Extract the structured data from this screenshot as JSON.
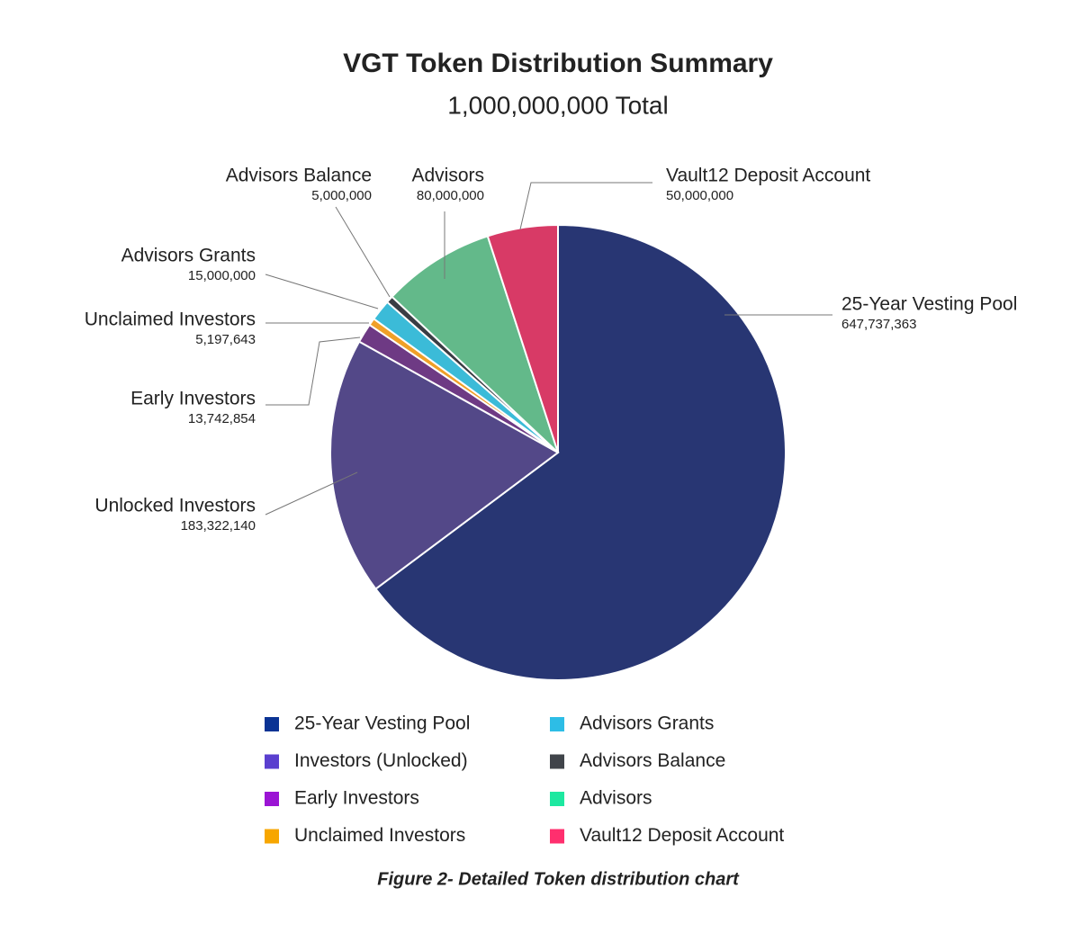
{
  "chart_data": {
    "type": "pie",
    "title": "VGT Token Distribution Summary",
    "subtitle": "1,000,000,000 Total",
    "caption": "Figure 2- Detailed Token distribution chart",
    "labels": [
      "25-Year Vesting Pool",
      "Unlocked Investors",
      "Early Investors",
      "Unclaimed Investors",
      "Advisors Grants",
      "Advisors Balance",
      "Advisors",
      "Vault12 Deposit Account"
    ],
    "values": [
      647737363,
      183322140,
      13742854,
      5197643,
      15000000,
      5000000,
      80000000,
      50000000
    ],
    "value_labels": [
      "647,737,363",
      "183,322,140",
      "13,742,854",
      "5,197,643",
      "15,000,000",
      "5,000,000",
      "80,000,000",
      "50,000,000"
    ],
    "colors": [
      "#283673",
      "#534888",
      "#6e3a84",
      "#f0a028",
      "#3bbbd8",
      "#3a3d44",
      "#63b98a",
      "#d83a66"
    ],
    "legend": [
      {
        "name": "25-Year Vesting Pool",
        "color": "#0a3394"
      },
      {
        "name": "Investors (Unlocked)",
        "color": "#5a3fcf"
      },
      {
        "name": "Early Investors",
        "color": "#9b14d4"
      },
      {
        "name": "Unclaimed Investors",
        "color": "#f7a600"
      },
      {
        "name": "Advisors Grants",
        "color": "#2dbde6"
      },
      {
        "name": "Advisors Balance",
        "color": "#40444a"
      },
      {
        "name": "Advisors",
        "color": "#1de8a0"
      },
      {
        "name": "Vault12 Deposit Account",
        "color": "#ff2f6e"
      }
    ]
  }
}
